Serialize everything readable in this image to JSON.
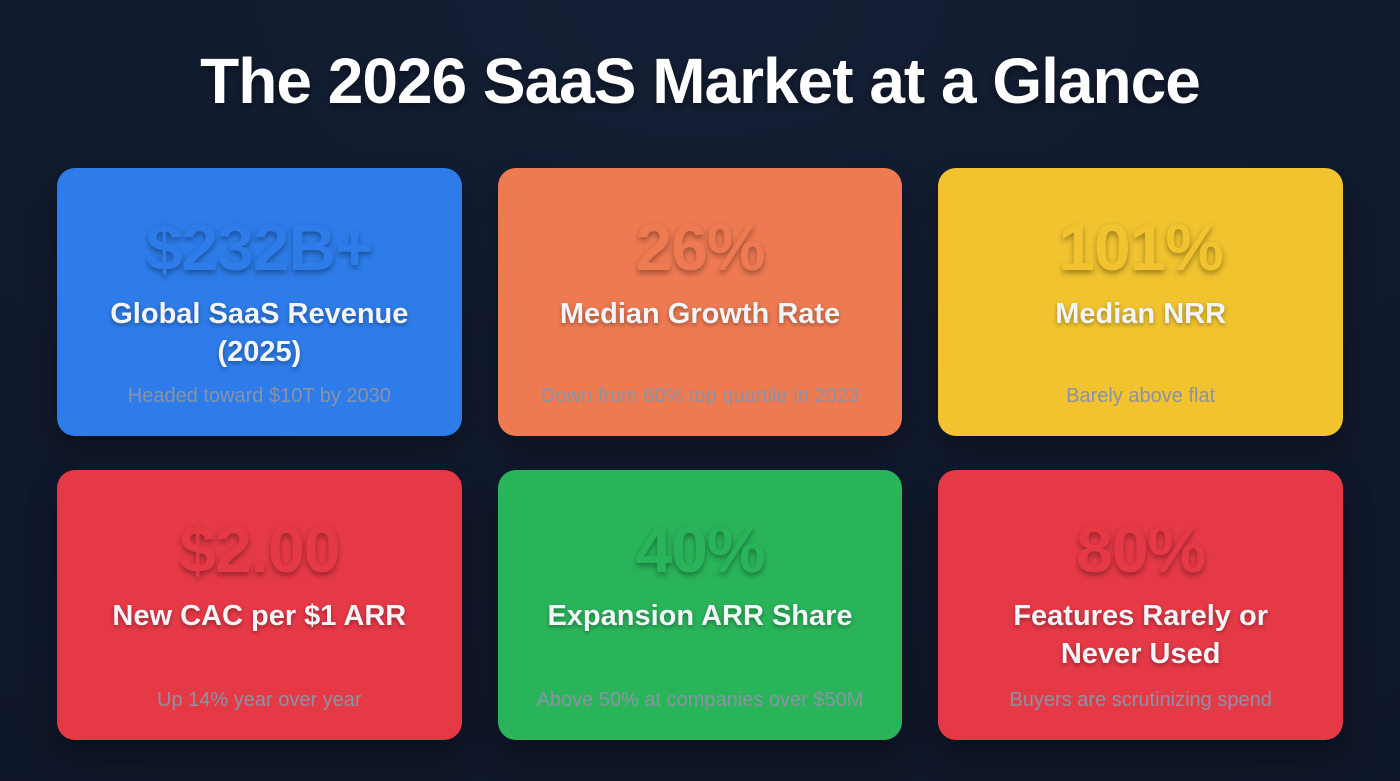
{
  "page": {
    "title": "The 2026 SaaS Market at a Glance",
    "background_color": "#10192c",
    "card_background_color": "#2a3346",
    "label_color": "#f3f5f8",
    "note_color": "#8a93a5"
  },
  "cards": [
    {
      "accent": "#2d7ce9",
      "value": "$232B+",
      "label": "Global SaaS Revenue (2025)",
      "note": "Headed toward $10T by 2030"
    },
    {
      "accent": "#ee7a52",
      "value": "26%",
      "label": "Median Growth Rate",
      "note": "Down from 60% top quartile in 2023"
    },
    {
      "accent": "#f0c32f",
      "value": "101%",
      "label": "Median NRR",
      "note": "Barely above flat"
    },
    {
      "accent": "#e63946",
      "value": "$2.00",
      "label": "New CAC per $1 ARR",
      "note": "Up 14% year over year"
    },
    {
      "accent": "#2ab45a",
      "value": "40%",
      "label": "Expansion ARR Share",
      "note": "Above 50% at companies over $50M"
    },
    {
      "accent": "#e63946",
      "value": "80%",
      "label": "Features Rarely or Never Used",
      "note": "Buyers are scrutinizing spend"
    }
  ],
  "chart_data": {
    "type": "table",
    "title": "The 2026 SaaS Market at a Glance",
    "categories": [
      "Global SaaS Revenue (2025)",
      "Median Growth Rate",
      "Median NRR",
      "New CAC per $1 ARR",
      "Expansion ARR Share",
      "Features Rarely or Never Used"
    ],
    "values": [
      "$232B+",
      "26%",
      "101%",
      "$2.00",
      "40%",
      "80%"
    ],
    "annotations": [
      "Headed toward $10T by 2030",
      "Down from 60% top quartile in 2023",
      "Barely above flat",
      "Up 14% year over year",
      "Above 50% at companies over $50M",
      "Buyers are scrutinizing spend"
    ],
    "legend_position": "none",
    "grid": false
  }
}
